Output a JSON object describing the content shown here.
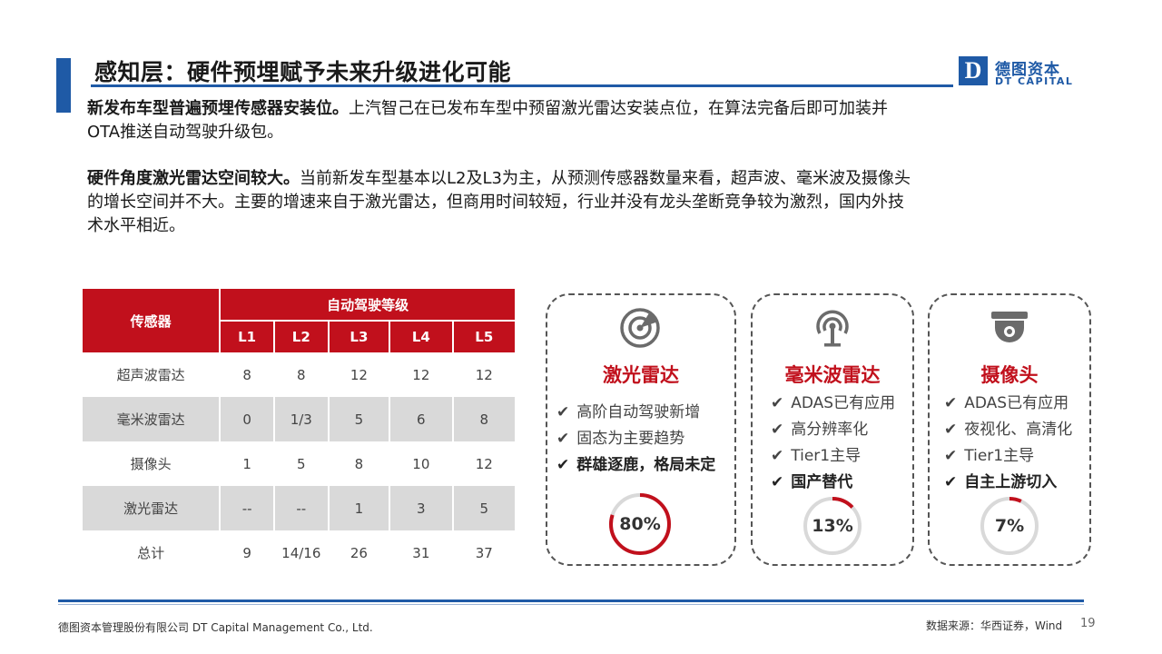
{
  "header": {
    "title": "感知层：硬件预埋赋予未来升级进化可能",
    "logo_mark": "D",
    "logo_cn": "德图资本",
    "logo_en": "DT CAPITAL"
  },
  "paragraphs": [
    {
      "lead": "新发布车型普遍预埋传感器安装位。",
      "line1": "上汽智己在已发布车型中预留激光雷达安装点位，在算法完备后即可加装并",
      "line2": "OTA推送自动驾驶升级包。"
    },
    {
      "lead": "硬件角度激光雷达空间较大。",
      "line1": "当前新发车型基本以L2及L3为主，从预测传感器数量来看，超声波、毫米波及摄像头",
      "line2": "的增长空间并不大。主要的增速来自于激光雷达，但商用时间较短，行业并没有龙头垄断竞争较为激烈，国内外技",
      "line3": "术水平相近。"
    }
  ],
  "table": {
    "header_sensor": "传感器",
    "header_level": "自动驾驶等级",
    "levels": [
      "L1",
      "L2",
      "L3",
      "L4",
      "L5"
    ],
    "rows": [
      {
        "name": "超声波雷达",
        "values": [
          "8",
          "8",
          "12",
          "12",
          "12"
        ]
      },
      {
        "name": "毫米波雷达",
        "values": [
          "0",
          "1/3",
          "5",
          "6",
          "8"
        ]
      },
      {
        "name": "摄像头",
        "values": [
          "1",
          "5",
          "8",
          "10",
          "12"
        ]
      },
      {
        "name": "激光雷达",
        "values": [
          "--",
          "--",
          "1",
          "3",
          "5"
        ]
      },
      {
        "name": "总计",
        "values": [
          "9",
          "14/16",
          "26",
          "31",
          "37"
        ]
      }
    ]
  },
  "cards": [
    {
      "icon": "lidar-radar-icon",
      "title": "激光雷达",
      "check": "✔",
      "bullets": [
        "高阶自动驾驶新增",
        "固态为主要趋势",
        "群雄逐鹿，格局未定"
      ],
      "percent_label": "80%",
      "percent": 0.8
    },
    {
      "icon": "antenna-signal-icon",
      "title": "毫米波雷达",
      "check": "✔",
      "bullets": [
        "ADAS已有应用",
        "高分辨率化",
        "Tier1主导",
        "国产替代"
      ],
      "percent_label": "13%",
      "percent": 0.13
    },
    {
      "icon": "dome-camera-icon",
      "title": "摄像头",
      "check": "✔",
      "bullets": [
        "ADAS已有应用",
        "夜视化、高清化",
        "Tier1主导",
        "自主上游切入"
      ],
      "percent_label": "7%",
      "percent": 0.07
    }
  ],
  "colors": {
    "accent_red": "#c1101c",
    "brand_blue": "#1f5aa6",
    "track_grey": "#d9d9d9"
  },
  "footer": {
    "company": "德图资本管理股份有限公司  DT Capital Management  Co., Ltd.",
    "source": "数据来源：华西证券，Wind",
    "page": "19"
  }
}
